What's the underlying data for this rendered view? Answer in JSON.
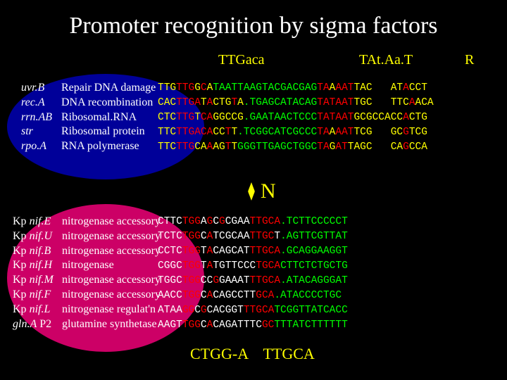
{
  "title": "Promoter recognition by sigma factors",
  "header": {
    "left": "TTGaca",
    "mid": "TAt.Aa.T",
    "right": "R"
  },
  "group1": {
    "genes": [
      {
        "name": "uvr.B",
        "desc": "Repair DNA damage"
      },
      {
        "name": "rec.A",
        "desc": "DNA recombination"
      },
      {
        "name": "rrn.AB",
        "desc": "Ribosomal.RNA"
      },
      {
        "name": "str",
        "desc": "Ribosomal protein"
      },
      {
        "name": "rpo.A",
        "desc": "RNA polymerase"
      }
    ],
    "seq": [
      [
        [
          "y",
          "TTG"
        ],
        [
          "r",
          "TTG"
        ],
        [
          "y",
          "G"
        ],
        [
          "r",
          "C"
        ],
        [
          "y",
          "A"
        ],
        [
          "g",
          "TAATTAAGTACGACGAG"
        ],
        [
          "r",
          "TA"
        ],
        [
          "y",
          "A"
        ],
        [
          "r",
          "AAT"
        ],
        [
          "y",
          "TAC   AT"
        ],
        [
          "r",
          "A"
        ],
        [
          "y",
          "CCT"
        ]
      ],
      [
        [
          "y",
          "CAC"
        ],
        [
          "r",
          "TTGA"
        ],
        [
          "y",
          "T"
        ],
        [
          "r",
          "A"
        ],
        [
          "y",
          "CTG"
        ],
        [
          "r",
          "T"
        ],
        [
          "y",
          "A"
        ],
        [
          "g",
          ".TGAGCATACAG"
        ],
        [
          "r",
          "TATAAT"
        ],
        [
          "y",
          "TGC   TTC"
        ],
        [
          "r",
          "A"
        ],
        [
          "y",
          "ACA"
        ]
      ],
      [
        [
          "y",
          "CTC"
        ],
        [
          "r",
          "TTG"
        ],
        [
          "y",
          "T"
        ],
        [
          "r",
          "CA"
        ],
        [
          "y",
          "GGCCG"
        ],
        [
          "g",
          ".GAATAACTCCC"
        ],
        [
          "r",
          "TATAAT"
        ],
        [
          "y",
          "GCGCCACC"
        ],
        [
          "r",
          "A"
        ],
        [
          "y",
          "CTG"
        ]
      ],
      [
        [
          "y",
          "TTC"
        ],
        [
          "r",
          "TTGACA"
        ],
        [
          "y",
          "CC"
        ],
        [
          "r",
          "T"
        ],
        [
          "y",
          "T"
        ],
        [
          "g",
          ".TCGGCATCGCCC"
        ],
        [
          "r",
          "TA"
        ],
        [
          "y",
          "A"
        ],
        [
          "r",
          "AAT"
        ],
        [
          "y",
          "TCG   GC"
        ],
        [
          "r",
          "G"
        ],
        [
          "y",
          "TCG"
        ]
      ],
      [
        [
          "y",
          "TTC"
        ],
        [
          "r",
          "TTG"
        ],
        [
          "y",
          "CA"
        ],
        [
          "r",
          "A"
        ],
        [
          "y",
          "AG"
        ],
        [
          "r",
          "T"
        ],
        [
          "y",
          "T"
        ],
        [
          "g",
          "GGGTTGAGCTGGC"
        ],
        [
          "r",
          "TA"
        ],
        [
          "y",
          "G"
        ],
        [
          "r",
          "AT"
        ],
        [
          "y",
          "TAGC   CA"
        ],
        [
          "r",
          "G"
        ],
        [
          "y",
          "CCA"
        ]
      ]
    ]
  },
  "nlabel": "N",
  "group2": {
    "genes": [
      {
        "pre": "Kp ",
        "it": "nif.E",
        "desc": "nitrogenase accessory"
      },
      {
        "pre": "Kp ",
        "it": "nif.U",
        "desc": "nitrogenase accessory"
      },
      {
        "pre": "Kp ",
        "it": "nif.B",
        "desc": "nitrogenase accessory"
      },
      {
        "pre": "Kp ",
        "it": "nif.H",
        "desc": "nitrogenase"
      },
      {
        "pre": "Kp ",
        "it": "nif.M",
        "desc": "nitrogenase accessory"
      },
      {
        "pre": "Kp ",
        "it": "nif.F",
        "desc": "nitrogenase accessory"
      },
      {
        "pre": "Kp ",
        "it": "nif.L",
        "desc": "nitrogenase regulat'n"
      },
      {
        "pre": "",
        "it": "gln.A",
        "post": " P2",
        "desc": "glutamine synthetase"
      }
    ],
    "seq": [
      [
        [
          "w",
          "CTTC"
        ],
        [
          "r",
          "TGG"
        ],
        [
          "w",
          "A"
        ],
        [
          "r",
          "G"
        ],
        [
          "w",
          "C"
        ],
        [
          "r",
          "G"
        ],
        [
          "w",
          "CGAA"
        ],
        [
          "r",
          "TTGCA"
        ],
        [
          "g",
          ".TCTTCCCCCT"
        ]
      ],
      [
        [
          "w",
          "TCTC"
        ],
        [
          "r",
          "TGG"
        ],
        [
          "w",
          "C"
        ],
        [
          "r",
          "A"
        ],
        [
          "w",
          "TCGCAA"
        ],
        [
          "r",
          "TTGC"
        ],
        [
          "w",
          "T"
        ],
        [
          "g",
          ".AGTTCGTTAT"
        ]
      ],
      [
        [
          "w",
          "CCTC"
        ],
        [
          "r",
          "TGG"
        ],
        [
          "w",
          "T"
        ],
        [
          "r",
          "A"
        ],
        [
          "w",
          "CAGCAT"
        ],
        [
          "r",
          "TTGCA"
        ],
        [
          "g",
          ".GCAGGAAGGT"
        ]
      ],
      [
        [
          "w",
          "CGGC"
        ],
        [
          "r",
          "TGG"
        ],
        [
          "w",
          "T"
        ],
        [
          "r",
          "A"
        ],
        [
          "w",
          "TGTTCCC"
        ],
        [
          "r",
          "TGCA"
        ],
        [
          "g",
          "CTTCTCTGCTG"
        ]
      ],
      [
        [
          "w",
          "TGGC"
        ],
        [
          "r",
          "TGG"
        ],
        [
          "w",
          "CC"
        ],
        [
          "r",
          "G"
        ],
        [
          "w",
          "GAAAT"
        ],
        [
          "r",
          "TTGCA"
        ],
        [
          "g",
          ".ATACAGGGAT"
        ]
      ],
      [
        [
          "w",
          "AACC"
        ],
        [
          "r",
          "TGG"
        ],
        [
          "w",
          "C"
        ],
        [
          "r",
          "A"
        ],
        [
          "w",
          "CAGCCTT"
        ],
        [
          "r",
          "GCA"
        ],
        [
          "g",
          ".ATACCCCTGC"
        ]
      ],
      [
        [
          "w",
          "ATAA"
        ],
        [
          "r",
          "GG"
        ],
        [
          "w",
          "C"
        ],
        [
          "r",
          "G"
        ],
        [
          "w",
          "CACGGT"
        ],
        [
          "r",
          "TTGCA"
        ],
        [
          "g",
          "TCGGTTATCACC"
        ]
      ],
      [
        [
          "w",
          "AAGT"
        ],
        [
          "r",
          "TGG"
        ],
        [
          "w",
          "C"
        ],
        [
          "r",
          "A"
        ],
        [
          "w",
          "CAGATTTC"
        ],
        [
          "r",
          "GC"
        ],
        [
          "g",
          "TTTATCTTTTTT"
        ]
      ]
    ]
  },
  "consensus": "CTGG-A    TTGCA"
}
